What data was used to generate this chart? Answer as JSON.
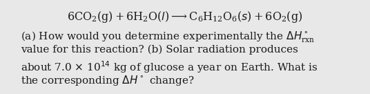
{
  "background_color": "#e8e8e8",
  "text_color": "#1a1a1a",
  "eq_fontsize": 11.5,
  "body_fontsize": 11.0,
  "figsize": [
    5.36,
    1.36
  ],
  "dpi": 100
}
